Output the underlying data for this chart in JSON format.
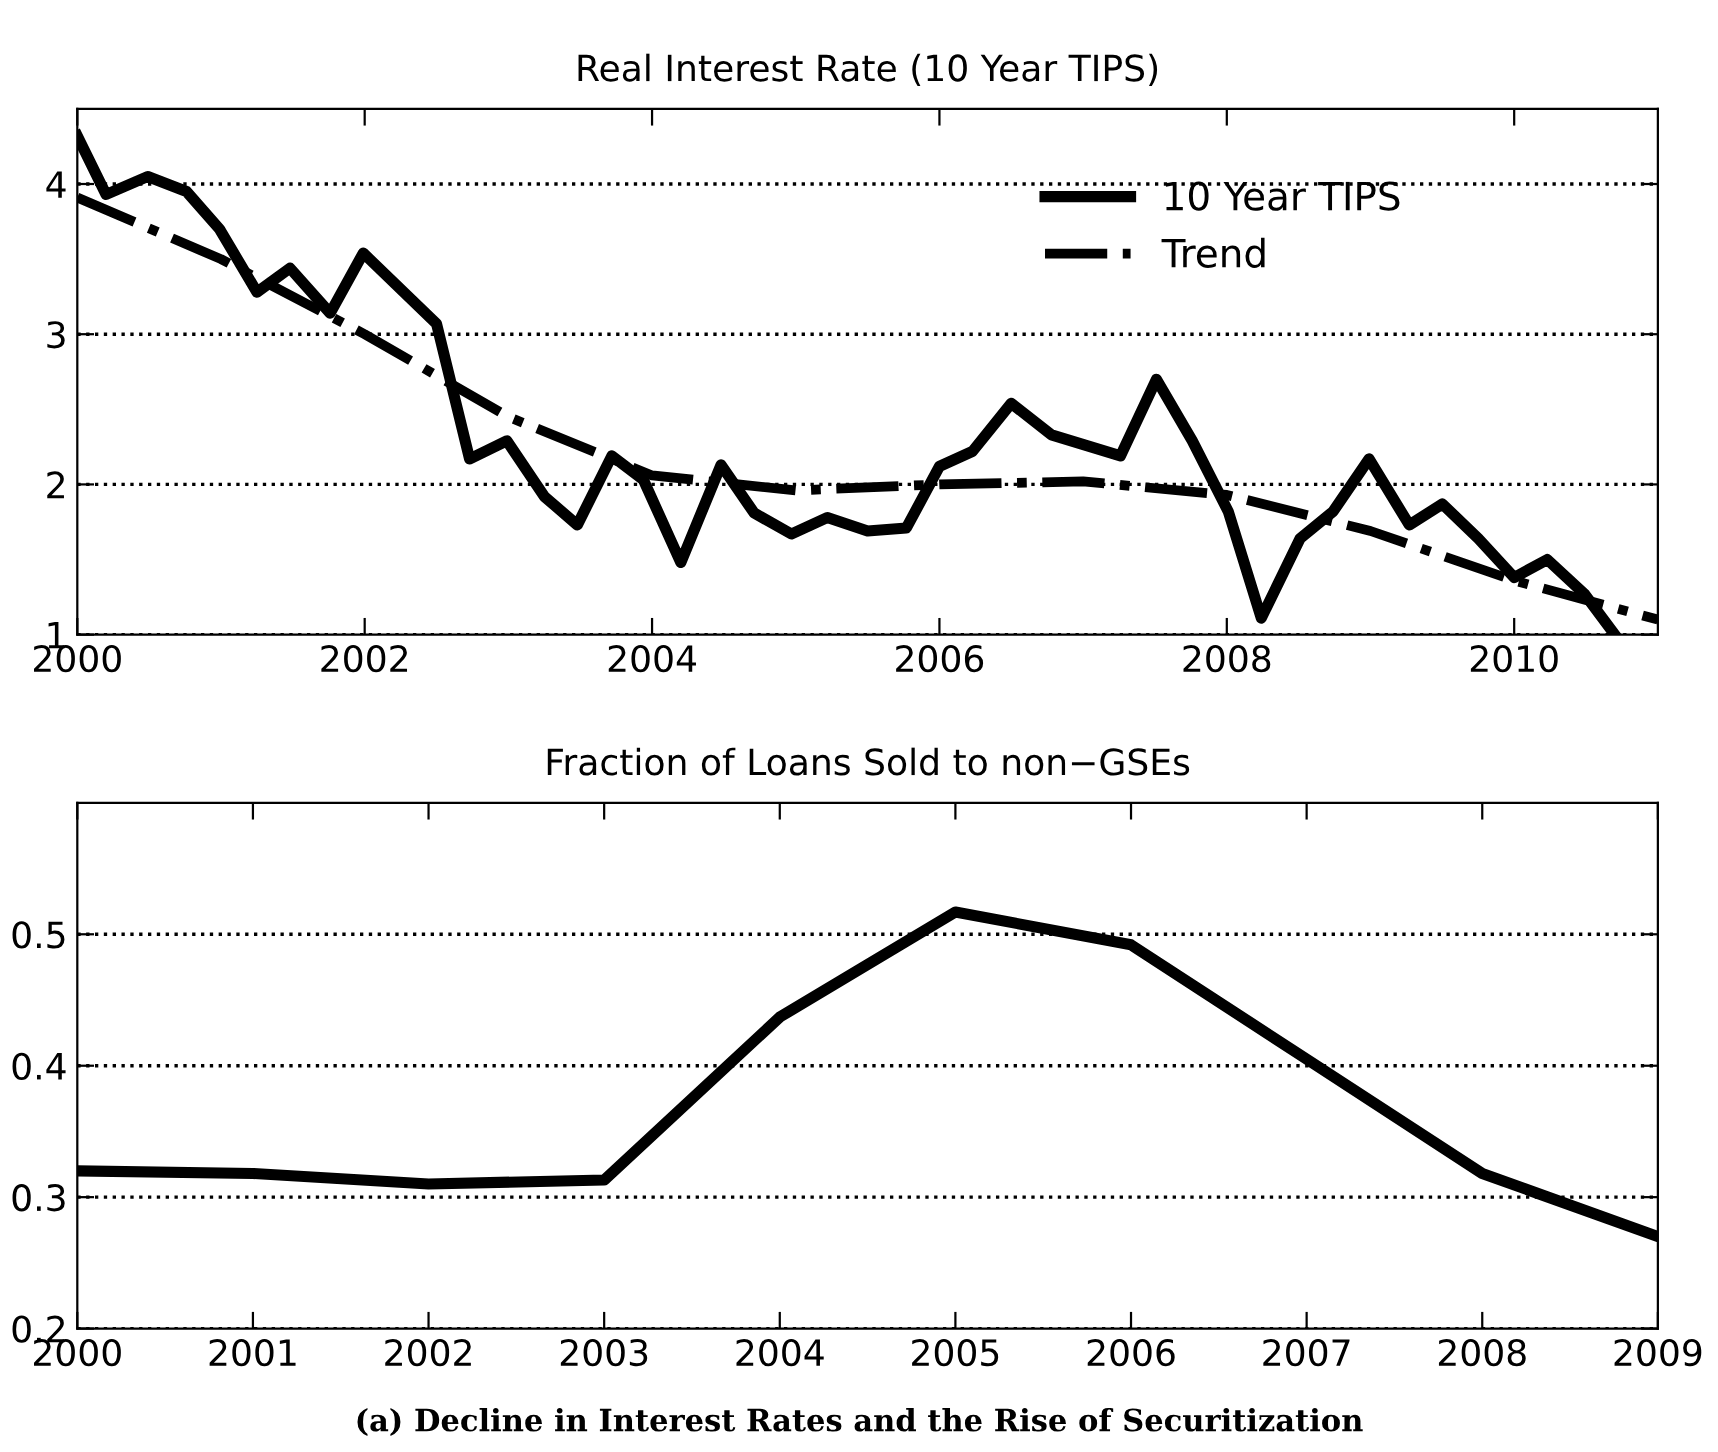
{
  "chart_data": [
    {
      "type": "line",
      "title": "Real Interest Rate (10 Year TIPS)",
      "xlim": [
        2000,
        2011
      ],
      "xticks": [
        2000,
        2002,
        2004,
        2006,
        2008,
        2010
      ],
      "ylim": [
        1,
        4.5
      ],
      "yticks": [
        1,
        2,
        3,
        4
      ],
      "grid": "y",
      "legend": "top right",
      "series": [
        {
          "name": "10 Year TIPS",
          "color": "#000000",
          "line_style": "solid",
          "x": [
            2000.0,
            2000.2,
            2000.49,
            2000.76,
            2000.99,
            2001.25,
            2001.48,
            2001.76,
            2001.99,
            2002.5,
            2002.73,
            2002.99,
            2003.25,
            2003.48,
            2003.72,
            2003.94,
            2004.2,
            2004.48,
            2004.71,
            2004.97,
            2005.22,
            2005.5,
            2005.77,
            2006.0,
            2006.23,
            2006.5,
            2006.78,
            2007.26,
            2007.51,
            2007.76,
            2008.01,
            2008.24,
            2008.51,
            2008.74,
            2008.99,
            2009.27,
            2009.5,
            2009.75,
            2010.0,
            2010.23,
            2010.49,
            2010.7
          ],
          "values": [
            4.32,
            3.93,
            4.05,
            3.95,
            3.7,
            3.28,
            3.44,
            3.14,
            3.54,
            3.07,
            2.17,
            2.29,
            1.92,
            1.73,
            2.19,
            2.03,
            1.48,
            2.13,
            1.81,
            1.67,
            1.78,
            1.69,
            1.71,
            2.12,
            2.22,
            2.54,
            2.33,
            2.19,
            2.7,
            2.29,
            1.82,
            1.11,
            1.64,
            1.82,
            2.17,
            1.73,
            1.87,
            1.64,
            1.38,
            1.5,
            1.27,
            1.0
          ]
        },
        {
          "name": "Trend",
          "color": "#000000",
          "line_style": "dashdot",
          "x": [
            2000,
            2001,
            2002,
            2003,
            2004,
            2005,
            2006,
            2007,
            2008,
            2009,
            2010,
            2011
          ],
          "values": [
            3.91,
            3.5,
            3.0,
            2.45,
            2.06,
            1.96,
            2.0,
            2.02,
            1.93,
            1.69,
            1.36,
            1.1
          ]
        }
      ]
    },
    {
      "type": "line",
      "title": "Fraction of Loans Sold to non−GSEs",
      "xlim": [
        2000,
        2009
      ],
      "xticks": [
        2000,
        2001,
        2002,
        2003,
        2004,
        2005,
        2006,
        2007,
        2008,
        2009
      ],
      "ylim": [
        0.2,
        0.6
      ],
      "yticks": [
        0.2,
        0.3,
        0.4,
        0.5
      ],
      "grid": "y",
      "series": [
        {
          "color": "#000000",
          "line_style": "solid",
          "x": [
            2000,
            2001,
            2002,
            2003,
            2004,
            2005,
            2006,
            2007,
            2008,
            2009
          ],
          "values": [
            0.32,
            0.318,
            0.31,
            0.313,
            0.437,
            0.517,
            0.492,
            0.405,
            0.318,
            0.27
          ]
        }
      ],
      "annotations": [
        "(a) Decline in Interest Rates and the Rise of Securitization"
      ]
    }
  ]
}
